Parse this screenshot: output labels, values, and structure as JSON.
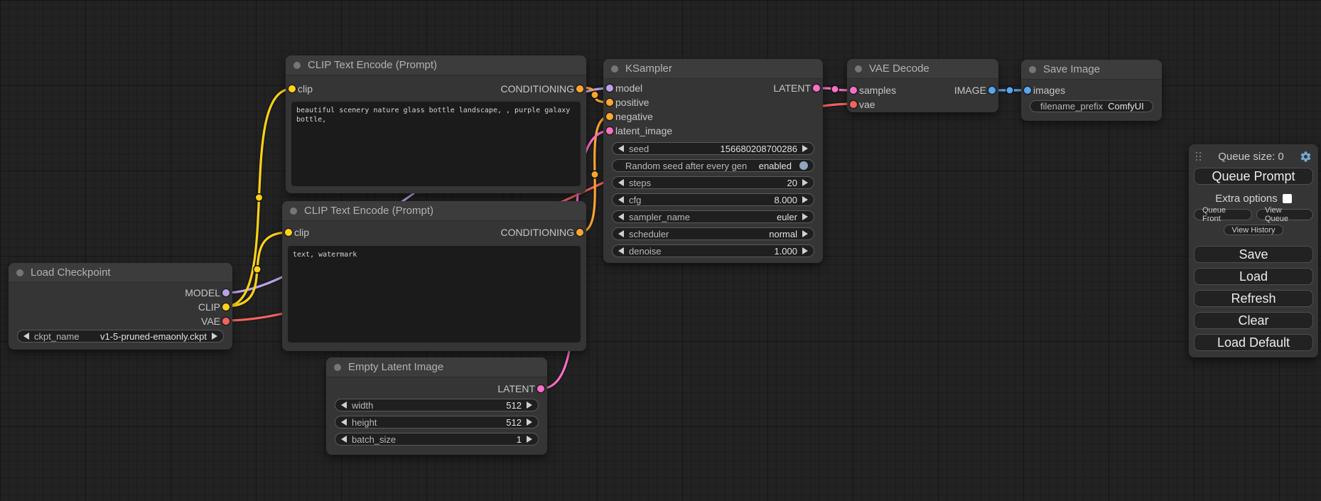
{
  "colors": {
    "model": "#b9a1e6",
    "clip": "#ffd218",
    "vae": "#f4635f",
    "conditioning": "#ffa831",
    "latent": "#f96fc6",
    "image": "#58a6f0",
    "title_dot": "#767676",
    "toggle": "#8fa5c0",
    "gear": "#74a7cf"
  },
  "icons": {
    "settings": "gear-icon",
    "drag": "drag-handle-icon",
    "decrement": "left-arrow-icon",
    "increment": "right-arrow-icon"
  },
  "nodes": {
    "load_checkpoint": {
      "title": "Load Checkpoint",
      "outputs": [
        "MODEL",
        "CLIP",
        "VAE"
      ],
      "widget": {
        "label": "ckpt_name",
        "value": "v1-5-pruned-emaonly.ckpt"
      }
    },
    "clip_positive": {
      "title": "CLIP Text Encode (Prompt)",
      "input": "clip",
      "output": "CONDITIONING",
      "text": "beautiful scenery nature glass bottle landscape, , purple galaxy bottle,"
    },
    "clip_negative": {
      "title": "CLIP Text Encode (Prompt)",
      "input": "clip",
      "output": "CONDITIONING",
      "text": "text, watermark"
    },
    "ksampler": {
      "title": "KSampler",
      "inputs": [
        "model",
        "positive",
        "negative",
        "latent_image"
      ],
      "output": "LATENT",
      "widgets": [
        {
          "label": "seed",
          "value": "156680208700286"
        },
        {
          "label": "Random seed after every gen",
          "value": "enabled"
        },
        {
          "label": "steps",
          "value": "20"
        },
        {
          "label": "cfg",
          "value": "8.000"
        },
        {
          "label": "sampler_name",
          "value": "euler"
        },
        {
          "label": "scheduler",
          "value": "normal"
        },
        {
          "label": "denoise",
          "value": "1.000"
        }
      ]
    },
    "vae_decode": {
      "title": "VAE Decode",
      "inputs": [
        "samples",
        "vae"
      ],
      "output": "IMAGE"
    },
    "save_image": {
      "title": "Save Image",
      "input": "images",
      "widget": {
        "label": "filename_prefix",
        "value": "ComfyUI"
      }
    },
    "empty_latent": {
      "title": "Empty Latent Image",
      "output": "LATENT",
      "widgets": [
        {
          "label": "width",
          "value": "512"
        },
        {
          "label": "height",
          "value": "512"
        },
        {
          "label": "batch_size",
          "value": "1"
        }
      ]
    }
  },
  "queue_panel": {
    "queue_size": "Queue size: 0",
    "queue_prompt": "Queue Prompt",
    "extra_options": "Extra options",
    "queue_front": "Queue Front",
    "view_queue": "View Queue",
    "view_history": "View History",
    "save": "Save",
    "load": "Load",
    "refresh": "Refresh",
    "clear": "Clear",
    "load_default": "Load Default"
  }
}
